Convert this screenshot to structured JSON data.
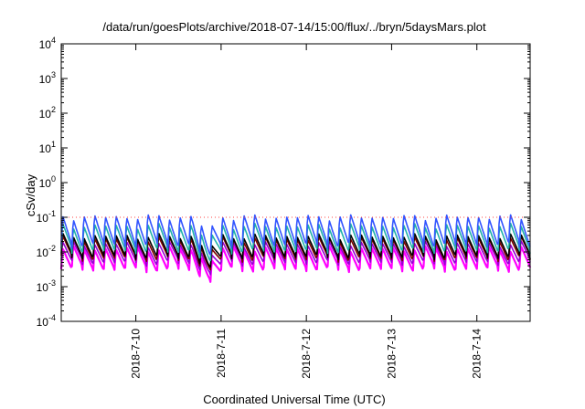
{
  "chart_data": {
    "type": "line",
    "title": "/data/run/goesPlots/archive/2018-07-14/15:00/flux/../bryn/5daysMars.plot",
    "xlabel": "Coordinated Universal Time (UTC)",
    "ylabel": "cSv/day",
    "y_scale": "log",
    "ylim": [
      0.0001,
      10000
    ],
    "y_ticks": [
      {
        "base": "10",
        "exp": "-4"
      },
      {
        "base": "10",
        "exp": "-3"
      },
      {
        "base": "10",
        "exp": "-2"
      },
      {
        "base": "10",
        "exp": "-1"
      },
      {
        "base": "10",
        "exp": "0"
      },
      {
        "base": "10",
        "exp": "1"
      },
      {
        "base": "10",
        "exp": "2"
      },
      {
        "base": "10",
        "exp": "3"
      },
      {
        "base": "10",
        "exp": "4"
      }
    ],
    "xlim": [
      "2018-07-09 03:00",
      "2018-07-14 15:00"
    ],
    "x_ticks": [
      "2018-7-10",
      "2018-7-11",
      "2018-7-12",
      "2018-7-13",
      "2018-7-14"
    ],
    "grid": false,
    "reference_line": {
      "y": 0.1,
      "style": "dotted",
      "color": "#ff4040"
    },
    "colors": {
      "magenta": "#ff00ff",
      "purple": "#9400d3",
      "teal": "#20b2aa",
      "blue": "#3355ff",
      "darkred": "#800000",
      "black": "#000000"
    },
    "pattern": {
      "period_hours": 3,
      "dip_event": {
        "start": "2018-07-10 16:00",
        "end": "2018-07-11 00:00"
      }
    },
    "series": [
      {
        "color": "#ff00ff",
        "peak": 0.013,
        "trough": 0.0032
      },
      {
        "color": "#9400d3",
        "peak": 0.018,
        "trough": 0.005
      },
      {
        "color": "#800000",
        "peak": 0.025,
        "trough": 0.0065
      },
      {
        "color": "#000000",
        "peak": 0.03,
        "trough": 0.0075
      },
      {
        "color": "#20b2aa",
        "peak": 0.06,
        "trough": 0.011
      },
      {
        "color": "#3355ff",
        "peak": 0.11,
        "trough": 0.016
      }
    ]
  }
}
